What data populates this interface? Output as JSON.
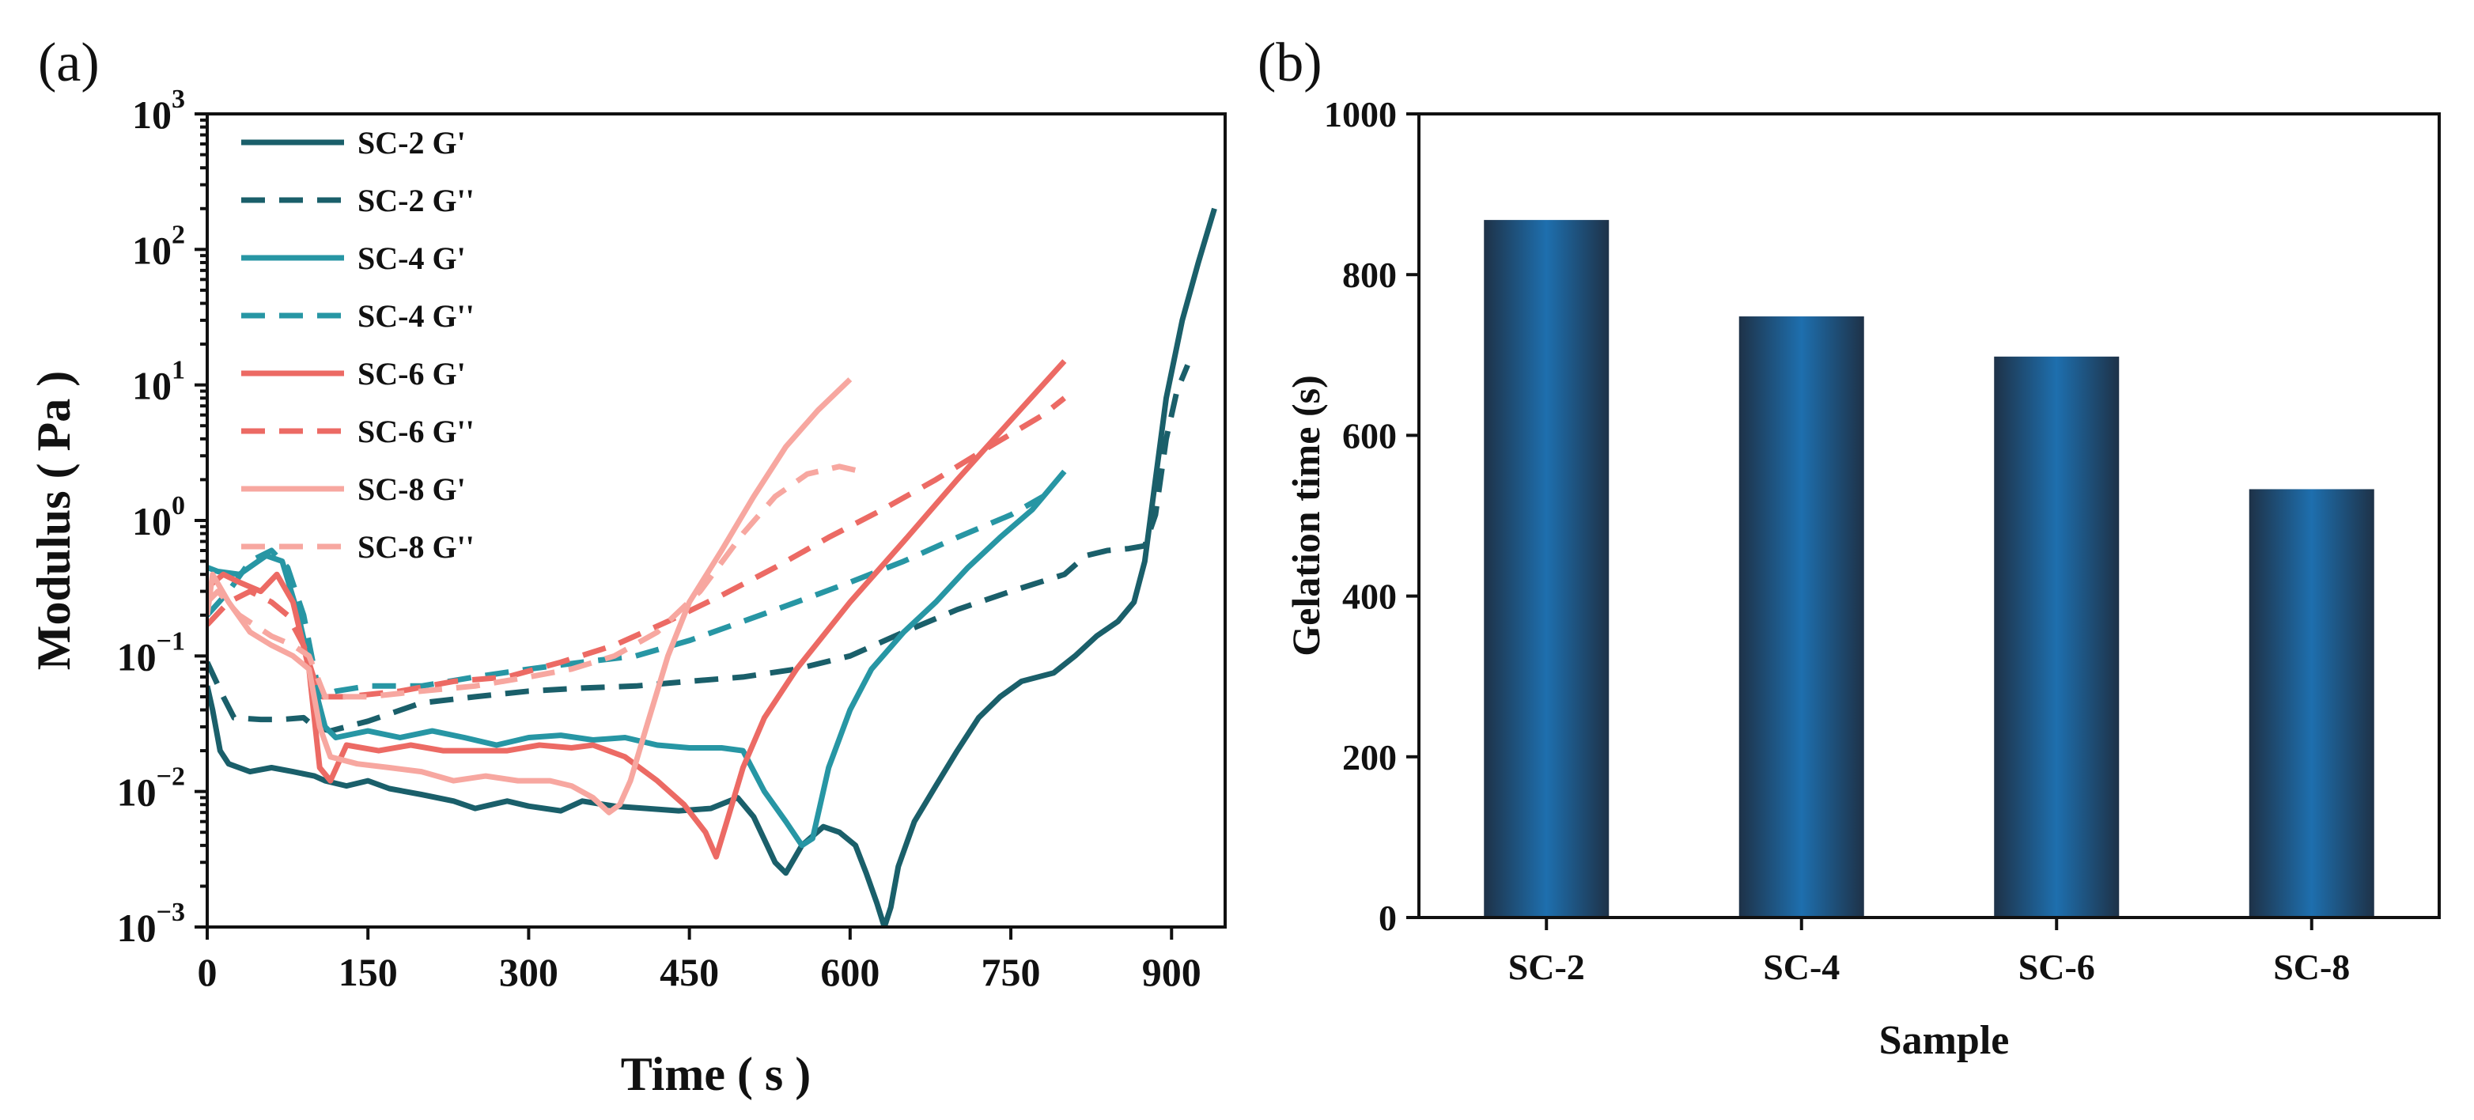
{
  "chart_data": [
    {
      "panel": "(a)",
      "type": "line",
      "xlabel": "Time ( s )",
      "ylabel": "Modulus ( Pa )",
      "xlim": [
        0,
        950
      ],
      "ylim": [
        0.001,
        1000
      ],
      "yscale": "log",
      "xticks": [
        0,
        150,
        300,
        450,
        600,
        750,
        900
      ],
      "yticks": [
        {
          "value": 0.001,
          "base": "10",
          "exp": "−3"
        },
        {
          "value": 0.01,
          "base": "10",
          "exp": "−2"
        },
        {
          "value": 0.1,
          "base": "10",
          "exp": "−1"
        },
        {
          "value": 1,
          "base": "10",
          "exp": "0"
        },
        {
          "value": 10,
          "base": "10",
          "exp": "1"
        },
        {
          "value": 100,
          "base": "10",
          "exp": "2"
        },
        {
          "value": 1000,
          "base": "10",
          "exp": "3"
        }
      ],
      "legend_position": "top-left",
      "series": [
        {
          "name": "SC-2 G'",
          "color": "#1a5f6a",
          "dash": "solid",
          "points": [
            [
              0,
              0.06
            ],
            [
              5,
              0.04
            ],
            [
              12,
              0.02
            ],
            [
              20,
              0.016
            ],
            [
              40,
              0.014
            ],
            [
              60,
              0.015
            ],
            [
              80,
              0.014
            ],
            [
              100,
              0.013
            ],
            [
              110,
              0.012
            ],
            [
              130,
              0.011
            ],
            [
              150,
              0.012
            ],
            [
              170,
              0.0105
            ],
            [
              200,
              0.0095
            ],
            [
              230,
              0.0085
            ],
            [
              250,
              0.0075
            ],
            [
              280,
              0.0085
            ],
            [
              300,
              0.0078
            ],
            [
              330,
              0.0072
            ],
            [
              350,
              0.0085
            ],
            [
              380,
              0.0078
            ],
            [
              410,
              0.0075
            ],
            [
              440,
              0.0072
            ],
            [
              470,
              0.0075
            ],
            [
              495,
              0.009
            ],
            [
              510,
              0.0065
            ],
            [
              530,
              0.003
            ],
            [
              540,
              0.0025
            ],
            [
              555,
              0.004
            ],
            [
              575,
              0.0055
            ],
            [
              590,
              0.005
            ],
            [
              605,
              0.004
            ],
            [
              615,
              0.0025
            ],
            [
              625,
              0.0015
            ],
            [
              632,
              0.001
            ],
            [
              638,
              0.0014
            ],
            [
              645,
              0.0028
            ],
            [
              660,
              0.006
            ],
            [
              680,
              0.011
            ],
            [
              700,
              0.02
            ],
            [
              720,
              0.035
            ],
            [
              740,
              0.05
            ],
            [
              760,
              0.065
            ],
            [
              790,
              0.075
            ],
            [
              810,
              0.1
            ],
            [
              830,
              0.14
            ],
            [
              850,
              0.18
            ],
            [
              865,
              0.25
            ],
            [
              875,
              0.5
            ],
            [
              885,
              2
            ],
            [
              895,
              8
            ],
            [
              910,
              30
            ],
            [
              925,
              80
            ],
            [
              940,
              200
            ]
          ]
        },
        {
          "name": "SC-2 G''",
          "color": "#1a5f6a",
          "dash": "dashed",
          "points": [
            [
              0,
              0.09
            ],
            [
              15,
              0.05
            ],
            [
              25,
              0.035
            ],
            [
              50,
              0.034
            ],
            [
              70,
              0.034
            ],
            [
              90,
              0.035
            ],
            [
              100,
              0.03
            ],
            [
              115,
              0.028
            ],
            [
              150,
              0.033
            ],
            [
              200,
              0.045
            ],
            [
              250,
              0.05
            ],
            [
              300,
              0.055
            ],
            [
              350,
              0.058
            ],
            [
              400,
              0.06
            ],
            [
              450,
              0.065
            ],
            [
              500,
              0.07
            ],
            [
              550,
              0.08
            ],
            [
              600,
              0.1
            ],
            [
              650,
              0.15
            ],
            [
              700,
              0.22
            ],
            [
              750,
              0.3
            ],
            [
              800,
              0.4
            ],
            [
              820,
              0.55
            ],
            [
              840,
              0.6
            ],
            [
              860,
              0.62
            ],
            [
              875,
              0.65
            ],
            [
              885,
              1.1
            ],
            [
              895,
              4
            ],
            [
              905,
              9
            ],
            [
              915,
              14
            ]
          ]
        },
        {
          "name": "SC-4 G'",
          "color": "#2796a4",
          "dash": "solid",
          "points": [
            [
              0,
              0.45
            ],
            [
              10,
              0.42
            ],
            [
              30,
              0.4
            ],
            [
              55,
              0.55
            ],
            [
              70,
              0.5
            ],
            [
              85,
              0.2
            ],
            [
              100,
              0.06
            ],
            [
              110,
              0.03
            ],
            [
              120,
              0.025
            ],
            [
              150,
              0.028
            ],
            [
              180,
              0.025
            ],
            [
              210,
              0.028
            ],
            [
              240,
              0.025
            ],
            [
              270,
              0.022
            ],
            [
              300,
              0.025
            ],
            [
              330,
              0.026
            ],
            [
              360,
              0.024
            ],
            [
              390,
              0.025
            ],
            [
              420,
              0.022
            ],
            [
              450,
              0.021
            ],
            [
              480,
              0.021
            ],
            [
              500,
              0.02
            ],
            [
              520,
              0.01
            ],
            [
              540,
              0.006
            ],
            [
              555,
              0.004
            ],
            [
              565,
              0.0045
            ],
            [
              580,
              0.015
            ],
            [
              600,
              0.04
            ],
            [
              620,
              0.08
            ],
            [
              650,
              0.15
            ],
            [
              680,
              0.25
            ],
            [
              710,
              0.45
            ],
            [
              740,
              0.75
            ],
            [
              770,
              1.2
            ],
            [
              800,
              2.3
            ]
          ]
        },
        {
          "name": "SC-4 G''",
          "color": "#2796a4",
          "dash": "dashed",
          "points": [
            [
              0,
              0.2
            ],
            [
              20,
              0.3
            ],
            [
              40,
              0.5
            ],
            [
              60,
              0.6
            ],
            [
              75,
              0.45
            ],
            [
              90,
              0.2
            ],
            [
              105,
              0.05
            ],
            [
              120,
              0.055
            ],
            [
              150,
              0.06
            ],
            [
              200,
              0.06
            ],
            [
              250,
              0.07
            ],
            [
              300,
              0.08
            ],
            [
              350,
              0.09
            ],
            [
              400,
              0.1
            ],
            [
              450,
              0.13
            ],
            [
              500,
              0.18
            ],
            [
              550,
              0.25
            ],
            [
              600,
              0.35
            ],
            [
              650,
              0.5
            ],
            [
              700,
              0.75
            ],
            [
              750,
              1.1
            ],
            [
              780,
              1.5
            ]
          ]
        },
        {
          "name": "SC-6 G'",
          "color": "#ec6a64",
          "dash": "solid",
          "points": [
            [
              0,
              0.32
            ],
            [
              15,
              0.4
            ],
            [
              30,
              0.35
            ],
            [
              50,
              0.3
            ],
            [
              65,
              0.4
            ],
            [
              80,
              0.25
            ],
            [
              95,
              0.08
            ],
            [
              105,
              0.015
            ],
            [
              115,
              0.012
            ],
            [
              130,
              0.022
            ],
            [
              160,
              0.02
            ],
            [
              190,
              0.022
            ],
            [
              220,
              0.02
            ],
            [
              250,
              0.02
            ],
            [
              280,
              0.02
            ],
            [
              310,
              0.022
            ],
            [
              340,
              0.021
            ],
            [
              360,
              0.022
            ],
            [
              390,
              0.018
            ],
            [
              420,
              0.012
            ],
            [
              445,
              0.008
            ],
            [
              465,
              0.005
            ],
            [
              475,
              0.0033
            ],
            [
              485,
              0.006
            ],
            [
              500,
              0.015
            ],
            [
              520,
              0.035
            ],
            [
              550,
              0.08
            ],
            [
              600,
              0.25
            ],
            [
              650,
              0.7
            ],
            [
              700,
              2
            ],
            [
              750,
              5.5
            ],
            [
              800,
              15
            ]
          ]
        },
        {
          "name": "SC-6 G''",
          "color": "#ec6a64",
          "dash": "dashed",
          "points": [
            [
              0,
              0.17
            ],
            [
              20,
              0.25
            ],
            [
              40,
              0.3
            ],
            [
              60,
              0.25
            ],
            [
              75,
              0.2
            ],
            [
              90,
              0.12
            ],
            [
              105,
              0.05
            ],
            [
              130,
              0.05
            ],
            [
              180,
              0.055
            ],
            [
              230,
              0.065
            ],
            [
              280,
              0.07
            ],
            [
              330,
              0.09
            ],
            [
              380,
              0.12
            ],
            [
              430,
              0.18
            ],
            [
              480,
              0.28
            ],
            [
              530,
              0.45
            ],
            [
              580,
              0.75
            ],
            [
              630,
              1.2
            ],
            [
              680,
              2
            ],
            [
              730,
              3.5
            ],
            [
              780,
              6
            ],
            [
              800,
              8
            ]
          ]
        },
        {
          "name": "SC-8 G'",
          "color": "#f7a7a0",
          "dash": "solid",
          "points": [
            [
              0,
              0.2
            ],
            [
              5,
              0.4
            ],
            [
              20,
              0.25
            ],
            [
              40,
              0.15
            ],
            [
              60,
              0.12
            ],
            [
              80,
              0.1
            ],
            [
              95,
              0.08
            ],
            [
              105,
              0.03
            ],
            [
              115,
              0.018
            ],
            [
              140,
              0.016
            ],
            [
              170,
              0.015
            ],
            [
              200,
              0.014
            ],
            [
              230,
              0.012
            ],
            [
              260,
              0.013
            ],
            [
              290,
              0.012
            ],
            [
              320,
              0.012
            ],
            [
              340,
              0.011
            ],
            [
              360,
              0.009
            ],
            [
              375,
              0.007
            ],
            [
              385,
              0.008
            ],
            [
              395,
              0.012
            ],
            [
              410,
              0.03
            ],
            [
              430,
              0.1
            ],
            [
              450,
              0.25
            ],
            [
              480,
              0.6
            ],
            [
              510,
              1.5
            ],
            [
              540,
              3.5
            ],
            [
              570,
              6.5
            ],
            [
              600,
              11
            ]
          ]
        },
        {
          "name": "SC-8 G''",
          "color": "#f7a7a0",
          "dash": "dashed",
          "points": [
            [
              0,
              0.25
            ],
            [
              10,
              0.3
            ],
            [
              30,
              0.2
            ],
            [
              60,
              0.14
            ],
            [
              80,
              0.12
            ],
            [
              95,
              0.1
            ],
            [
              110,
              0.05
            ],
            [
              150,
              0.05
            ],
            [
              200,
              0.055
            ],
            [
              250,
              0.06
            ],
            [
              300,
              0.07
            ],
            [
              340,
              0.08
            ],
            [
              380,
              0.1
            ],
            [
              420,
              0.15
            ],
            [
              460,
              0.3
            ],
            [
              500,
              0.8
            ],
            [
              530,
              1.5
            ],
            [
              560,
              2.2
            ],
            [
              590,
              2.5
            ],
            [
              610,
              2.3
            ]
          ]
        }
      ]
    },
    {
      "panel": "(b)",
      "type": "bar",
      "xlabel": "Sample",
      "ylabel": "Gelation time (s)",
      "ylim": [
        0,
        1000
      ],
      "yticks": [
        0,
        200,
        400,
        600,
        800,
        1000
      ],
      "categories": [
        "SC-2",
        "SC-4",
        "SC-6",
        "SC-8"
      ],
      "values": [
        868,
        748,
        698,
        533
      ],
      "bar_gradient": [
        "#1e3248",
        "#1e6fae",
        "#1e3248"
      ]
    }
  ]
}
